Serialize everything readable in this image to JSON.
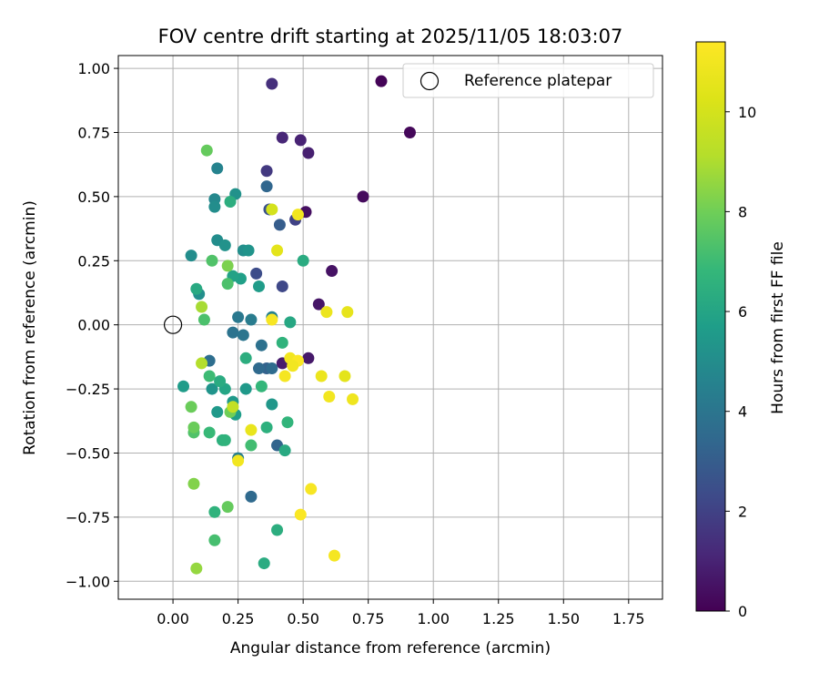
{
  "chart_data": {
    "type": "scatter",
    "title": "FOV centre drift starting at 2025/11/05 18:03:07",
    "xlabel": "Angular distance from reference (arcmin)",
    "ylabel": "Rotation from reference (arcmin)",
    "xlim": [
      -0.21,
      1.88
    ],
    "ylim": [
      -1.07,
      1.05
    ],
    "xticks": [
      "0.00",
      "0.25",
      "0.50",
      "0.75",
      "1.00",
      "1.25",
      "1.50",
      "1.75"
    ],
    "xtick_values": [
      0,
      0.25,
      0.5,
      0.75,
      1.0,
      1.25,
      1.5,
      1.75
    ],
    "yticks": [
      "−1.00",
      "−0.75",
      "−0.50",
      "−0.25",
      "0.00",
      "0.25",
      "0.50",
      "0.75",
      "1.00"
    ],
    "ytick_values": [
      -1.0,
      -0.75,
      -0.5,
      -0.25,
      0,
      0.25,
      0.5,
      0.75,
      1.0
    ],
    "grid": true,
    "legend": {
      "position": "top-right",
      "entries": [
        "Reference platepar"
      ]
    },
    "reference_point": {
      "x": 0.0,
      "y": 0.0
    },
    "colorbar": {
      "label": "Hours from first FF file",
      "range": [
        0,
        11.4
      ],
      "ticks": [
        "0",
        "2",
        "4",
        "6",
        "8",
        "10"
      ],
      "tick_values": [
        0,
        2,
        4,
        6,
        8,
        10
      ],
      "colormap": "viridis"
    },
    "points": [
      {
        "x": 0.8,
        "y": 0.95,
        "h": 0.1
      },
      {
        "x": 0.91,
        "y": 0.75,
        "h": 0.2
      },
      {
        "x": 0.73,
        "y": 0.5,
        "h": 0.3
      },
      {
        "x": 0.51,
        "y": 0.44,
        "h": 0.4
      },
      {
        "x": 0.61,
        "y": 0.21,
        "h": 0.5
      },
      {
        "x": 0.56,
        "y": 0.08,
        "h": 0.6
      },
      {
        "x": 0.52,
        "y": -0.13,
        "h": 0.7
      },
      {
        "x": 0.42,
        "y": -0.15,
        "h": 0.8
      },
      {
        "x": 0.52,
        "y": 0.67,
        "h": 0.9
      },
      {
        "x": 0.49,
        "y": 0.72,
        "h": 1.0
      },
      {
        "x": 0.42,
        "y": 0.73,
        "h": 1.1
      },
      {
        "x": 0.38,
        "y": 0.94,
        "h": 1.4
      },
      {
        "x": 0.36,
        "y": 0.6,
        "h": 1.7
      },
      {
        "x": 0.47,
        "y": 0.41,
        "h": 2.0
      },
      {
        "x": 0.42,
        "y": 0.15,
        "h": 2.2
      },
      {
        "x": 0.32,
        "y": 0.2,
        "h": 2.4
      },
      {
        "x": 0.37,
        "y": 0.45,
        "h": 2.6
      },
      {
        "x": 0.41,
        "y": 0.39,
        "h": 3.0
      },
      {
        "x": 0.36,
        "y": 0.54,
        "h": 3.4
      },
      {
        "x": 0.36,
        "y": -0.17,
        "h": 3.2
      },
      {
        "x": 0.33,
        "y": -0.17,
        "h": 3.5
      },
      {
        "x": 0.38,
        "y": -0.17,
        "h": 3.6
      },
      {
        "x": 0.34,
        "y": -0.08,
        "h": 3.8
      },
      {
        "x": 0.4,
        "y": -0.47,
        "h": 3.3
      },
      {
        "x": 0.3,
        "y": -0.67,
        "h": 3.5
      },
      {
        "x": 0.14,
        "y": -0.14,
        "h": 3.7
      },
      {
        "x": 0.23,
        "y": -0.03,
        "h": 3.9
      },
      {
        "x": 0.25,
        "y": 0.03,
        "h": 4.1
      },
      {
        "x": 0.27,
        "y": -0.04,
        "h": 4.0
      },
      {
        "x": 0.3,
        "y": 0.02,
        "h": 4.3
      },
      {
        "x": 0.38,
        "y": 0.03,
        "h": 4.5
      },
      {
        "x": 0.25,
        "y": -0.52,
        "h": 4.4
      },
      {
        "x": 0.17,
        "y": 0.61,
        "h": 4.6
      },
      {
        "x": 0.16,
        "y": 0.49,
        "h": 4.8
      },
      {
        "x": 0.16,
        "y": 0.46,
        "h": 5.0
      },
      {
        "x": 0.24,
        "y": 0.51,
        "h": 5.2
      },
      {
        "x": 0.17,
        "y": 0.33,
        "h": 5.0
      },
      {
        "x": 0.2,
        "y": 0.31,
        "h": 5.2
      },
      {
        "x": 0.27,
        "y": 0.29,
        "h": 5.1
      },
      {
        "x": 0.29,
        "y": 0.29,
        "h": 5.3
      },
      {
        "x": 0.07,
        "y": 0.27,
        "h": 5.0
      },
      {
        "x": 0.1,
        "y": 0.12,
        "h": 5.1
      },
      {
        "x": 0.15,
        "y": -0.25,
        "h": 5.3
      },
      {
        "x": 0.17,
        "y": -0.34,
        "h": 5.5
      },
      {
        "x": 0.04,
        "y": -0.24,
        "h": 5.6
      },
      {
        "x": 0.23,
        "y": -0.3,
        "h": 5.5
      },
      {
        "x": 0.24,
        "y": -0.35,
        "h": 5.7
      },
      {
        "x": 0.28,
        "y": -0.25,
        "h": 5.5
      },
      {
        "x": 0.38,
        "y": -0.31,
        "h": 5.4
      },
      {
        "x": 0.33,
        "y": 0.15,
        "h": 5.6
      },
      {
        "x": 0.26,
        "y": 0.18,
        "h": 5.8
      },
      {
        "x": 0.23,
        "y": 0.19,
        "h": 5.9
      },
      {
        "x": 0.45,
        "y": 0.01,
        "h": 6.1
      },
      {
        "x": 0.5,
        "y": 0.25,
        "h": 6.3
      },
      {
        "x": 0.22,
        "y": 0.48,
        "h": 6.4
      },
      {
        "x": 0.09,
        "y": 0.14,
        "h": 6.2
      },
      {
        "x": 0.2,
        "y": -0.25,
        "h": 6.0
      },
      {
        "x": 0.18,
        "y": -0.22,
        "h": 6.3
      },
      {
        "x": 0.19,
        "y": -0.45,
        "h": 6.5
      },
      {
        "x": 0.2,
        "y": -0.45,
        "h": 6.6
      },
      {
        "x": 0.28,
        "y": -0.13,
        "h": 6.4
      },
      {
        "x": 0.42,
        "y": -0.07,
        "h": 6.6
      },
      {
        "x": 0.34,
        "y": -0.24,
        "h": 6.8
      },
      {
        "x": 0.36,
        "y": -0.4,
        "h": 6.5
      },
      {
        "x": 0.44,
        "y": -0.38,
        "h": 6.7
      },
      {
        "x": 0.43,
        "y": -0.49,
        "h": 6.2
      },
      {
        "x": 0.4,
        "y": -0.8,
        "h": 6.4
      },
      {
        "x": 0.35,
        "y": -0.93,
        "h": 6.3
      },
      {
        "x": 0.16,
        "y": -0.73,
        "h": 6.6
      },
      {
        "x": 0.14,
        "y": -0.42,
        "h": 6.9
      },
      {
        "x": 0.14,
        "y": -0.2,
        "h": 7.0
      },
      {
        "x": 0.3,
        "y": -0.47,
        "h": 7.1
      },
      {
        "x": 0.08,
        "y": -0.42,
        "h": 7.4
      },
      {
        "x": 0.12,
        "y": 0.02,
        "h": 7.3
      },
      {
        "x": 0.15,
        "y": 0.25,
        "h": 7.4
      },
      {
        "x": 0.21,
        "y": 0.16,
        "h": 7.3
      },
      {
        "x": 0.13,
        "y": 0.68,
        "h": 7.8
      },
      {
        "x": 0.16,
        "y": -0.84,
        "h": 7.2
      },
      {
        "x": 0.21,
        "y": -0.71,
        "h": 7.8
      },
      {
        "x": 0.08,
        "y": -0.4,
        "h": 7.9
      },
      {
        "x": 0.07,
        "y": -0.32,
        "h": 7.9
      },
      {
        "x": 0.22,
        "y": -0.34,
        "h": 8.0
      },
      {
        "x": 0.21,
        "y": 0.23,
        "h": 8.2
      },
      {
        "x": 0.08,
        "y": -0.62,
        "h": 8.3
      },
      {
        "x": 0.09,
        "y": -0.95,
        "h": 8.6
      },
      {
        "x": 0.11,
        "y": 0.07,
        "h": 8.9
      },
      {
        "x": 0.11,
        "y": -0.15,
        "h": 9.1
      },
      {
        "x": 0.23,
        "y": -0.32,
        "h": 9.5
      },
      {
        "x": 0.38,
        "y": 0.45,
        "h": 10.0
      },
      {
        "x": 0.48,
        "y": 0.43,
        "h": 11.0
      },
      {
        "x": 0.4,
        "y": 0.29,
        "h": 10.5
      },
      {
        "x": 0.38,
        "y": 0.02,
        "h": 11.2
      },
      {
        "x": 0.59,
        "y": 0.05,
        "h": 10.8
      },
      {
        "x": 0.67,
        "y": 0.05,
        "h": 10.6
      },
      {
        "x": 0.45,
        "y": -0.13,
        "h": 11.0
      },
      {
        "x": 0.48,
        "y": -0.14,
        "h": 11.3
      },
      {
        "x": 0.43,
        "y": -0.2,
        "h": 11.1
      },
      {
        "x": 0.46,
        "y": -0.16,
        "h": 11.0
      },
      {
        "x": 0.57,
        "y": -0.2,
        "h": 10.8
      },
      {
        "x": 0.66,
        "y": -0.2,
        "h": 10.5
      },
      {
        "x": 0.6,
        "y": -0.28,
        "h": 11.0
      },
      {
        "x": 0.69,
        "y": -0.29,
        "h": 10.9
      },
      {
        "x": 0.3,
        "y": -0.41,
        "h": 10.7
      },
      {
        "x": 0.25,
        "y": -0.53,
        "h": 11.0
      },
      {
        "x": 0.53,
        "y": -0.64,
        "h": 11.2
      },
      {
        "x": 0.49,
        "y": -0.74,
        "h": 11.3
      },
      {
        "x": 0.62,
        "y": -0.9,
        "h": 11.1
      }
    ]
  }
}
